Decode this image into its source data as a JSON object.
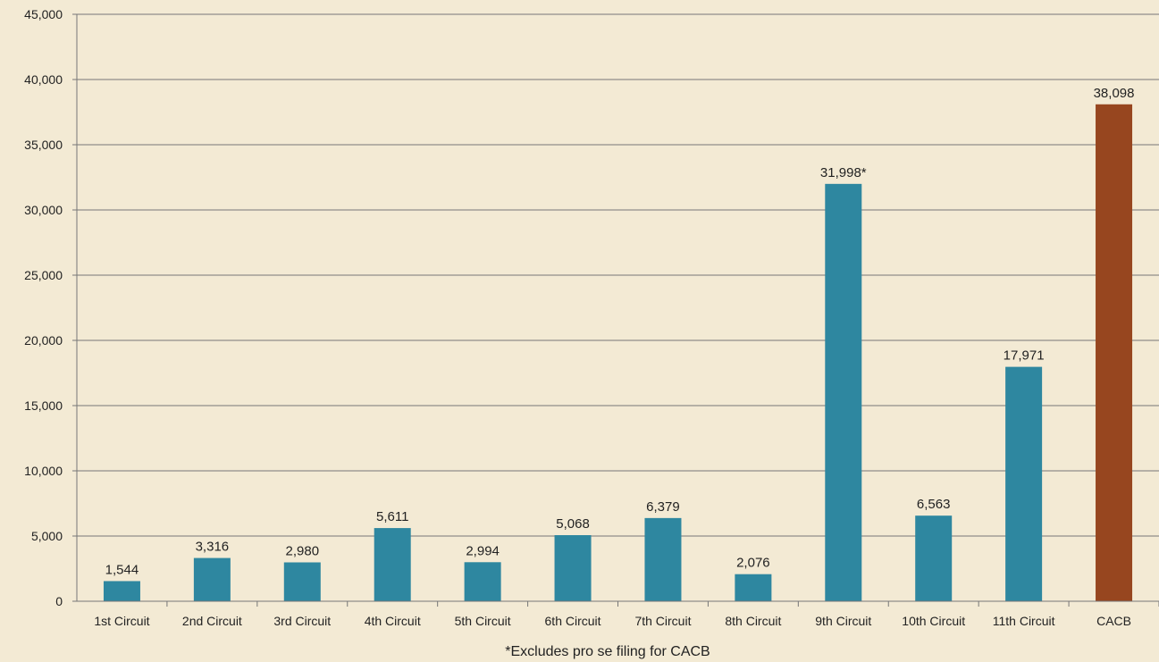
{
  "chart_data": {
    "type": "bar",
    "categories": [
      "1st Circuit",
      "2nd Circuit",
      "3rd Circuit",
      "4th Circuit",
      "5th Circuit",
      "6th Circuit",
      "7th Circuit",
      "8th Circuit",
      "9th Circuit",
      "10th Circuit",
      "11th Circuit",
      "CACB"
    ],
    "values": [
      1544,
      3316,
      2980,
      5611,
      2994,
      5068,
      6379,
      2076,
      31998,
      6563,
      17971,
      38098
    ],
    "data_labels": [
      "1,544",
      "3,316",
      "2,980",
      "5,611",
      "2,994",
      "5,068",
      "6,379",
      "2,076",
      "31,998*",
      "6,563",
      "17,971",
      "38,098"
    ],
    "colors": [
      "#2e87a0",
      "#2e87a0",
      "#2e87a0",
      "#2e87a0",
      "#2e87a0",
      "#2e87a0",
      "#2e87a0",
      "#2e87a0",
      "#2e87a0",
      "#2e87a0",
      "#2e87a0",
      "#97461f"
    ],
    "ylim": [
      0,
      45000
    ],
    "yticks": [
      0,
      5000,
      10000,
      15000,
      20000,
      25000,
      30000,
      35000,
      40000,
      45000
    ],
    "ytick_labels": [
      "0",
      "5,000",
      "10,000",
      "15,000",
      "20,000",
      "25,000",
      "30,000",
      "35,000",
      "40,000",
      "45,000"
    ],
    "grid": true,
    "legend": "none",
    "footnote": "*Excludes pro se filing for CACB",
    "title": "",
    "xlabel": "",
    "ylabel": ""
  }
}
